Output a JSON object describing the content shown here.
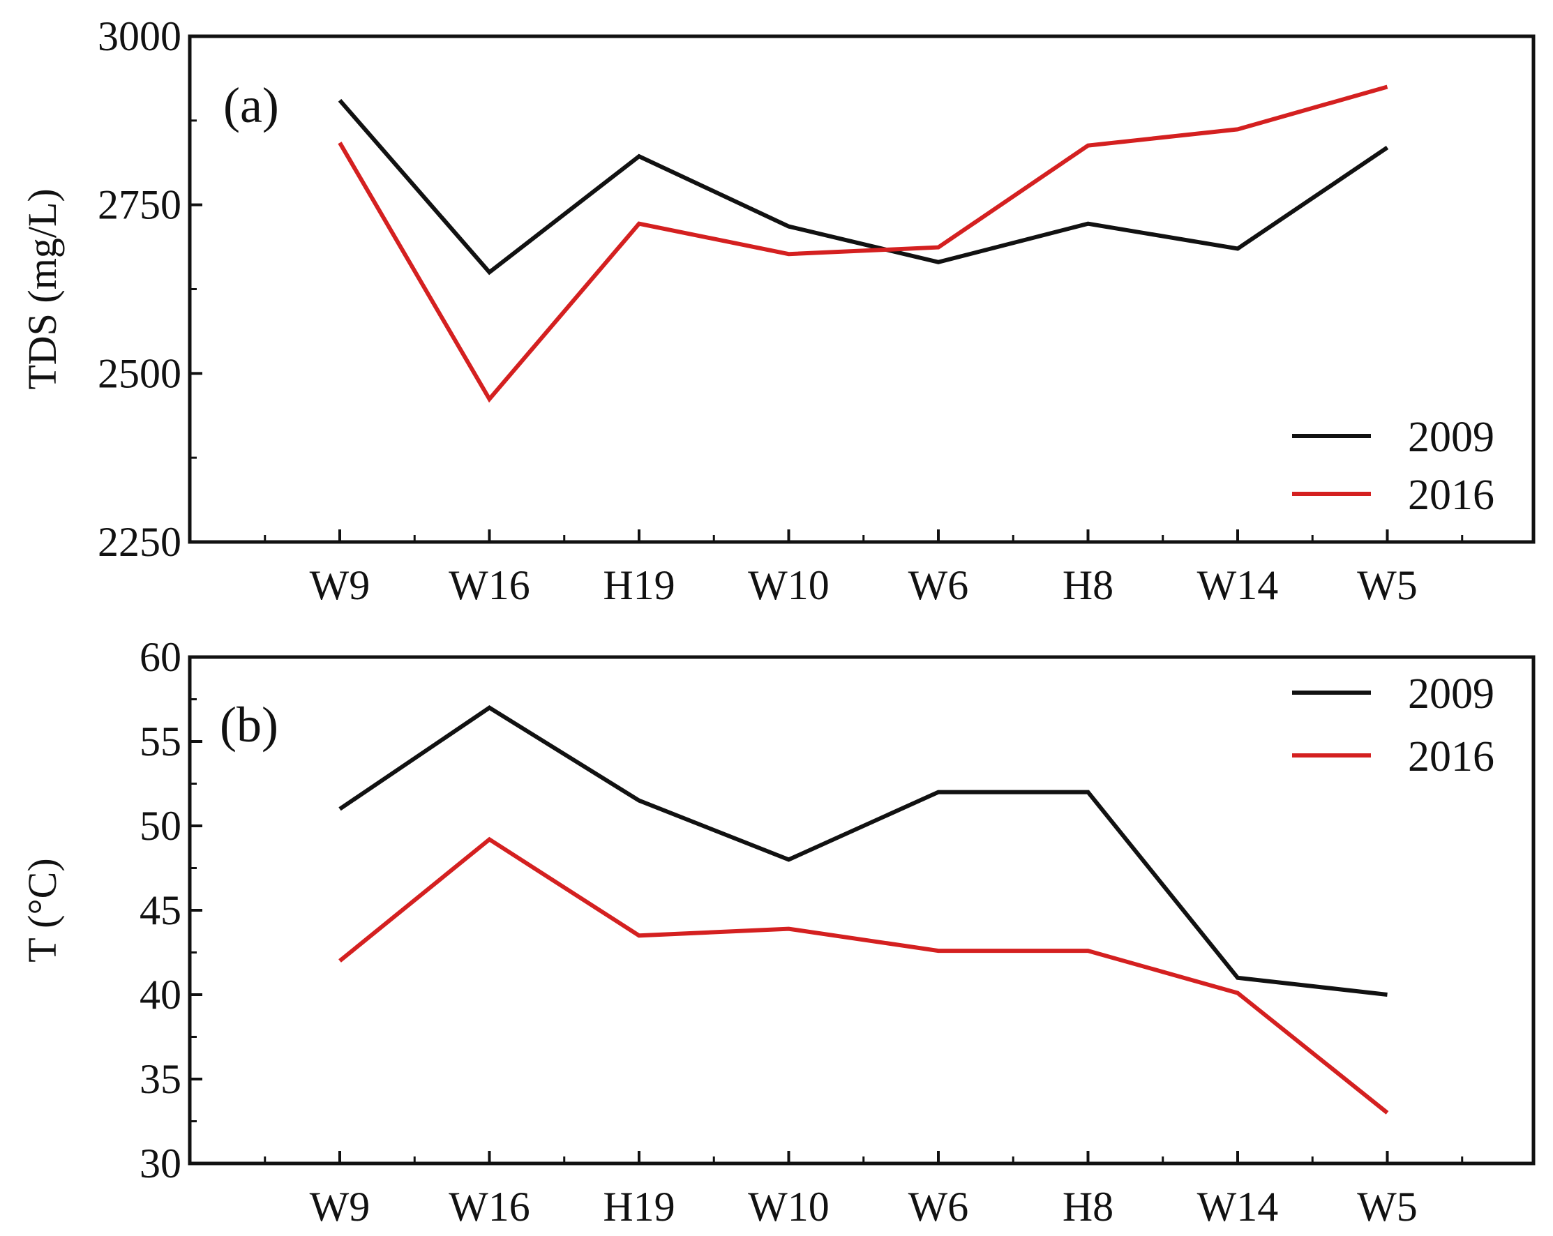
{
  "chart_data": [
    {
      "type": "line",
      "panel_label": "(a)",
      "ylabel": "TDS (mg/L)",
      "xlabel": "",
      "categories": [
        "W9",
        "W16",
        "H19",
        "W10",
        "W6",
        "H8",
        "W14",
        "W5"
      ],
      "ylim": [
        2250,
        3000
      ],
      "yticks": [
        "2250",
        "2500",
        "2750",
        "3000"
      ],
      "minor_ticks": true,
      "legend_position": "bottom-right",
      "series": [
        {
          "name": "2009",
          "color": "#111111",
          "values": [
            2905,
            2650,
            2822,
            2718,
            2665,
            2722,
            2685,
            2835
          ]
        },
        {
          "name": "2016",
          "color": "#d42020",
          "values": [
            2842,
            2462,
            2722,
            2677,
            2687,
            2838,
            2862,
            2925
          ]
        }
      ]
    },
    {
      "type": "line",
      "panel_label": "(b)",
      "ylabel": "T (°C)",
      "xlabel": "",
      "categories": [
        "W9",
        "W16",
        "H19",
        "W10",
        "W6",
        "H8",
        "W14",
        "W5"
      ],
      "ylim": [
        30,
        60
      ],
      "yticks": [
        "30",
        "35",
        "40",
        "45",
        "50",
        "55",
        "60"
      ],
      "minor_ticks": true,
      "legend_position": "top-right",
      "series": [
        {
          "name": "2009",
          "color": "#111111",
          "values": [
            51.0,
            57.0,
            51.5,
            48.0,
            52.0,
            52.0,
            41.0,
            40.0
          ]
        },
        {
          "name": "2016",
          "color": "#d42020",
          "values": [
            42.0,
            49.2,
            43.5,
            43.9,
            42.6,
            42.6,
            40.1,
            33.0
          ]
        }
      ]
    }
  ]
}
